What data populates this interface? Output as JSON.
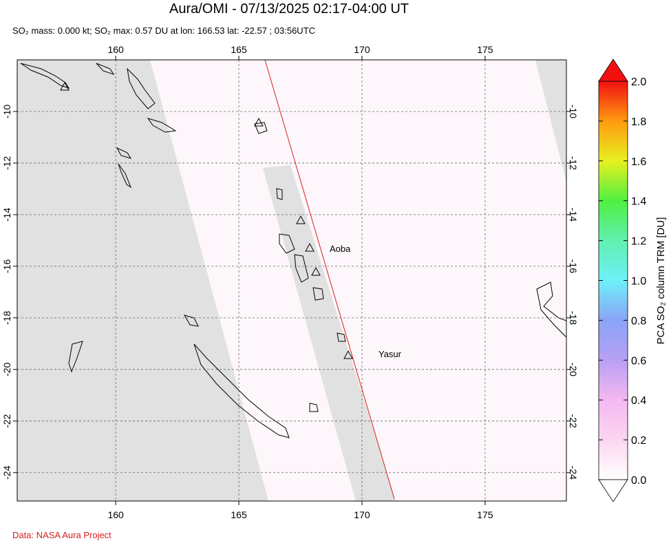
{
  "map": {
    "title": "Aura/OMI - 07/13/2025 02:17-04:00 UT",
    "subtitle": "SO₂ mass: 0.000 kt; SO₂ max: 0.57 DU at lon: 166.53 lat: -22.57 ; 03:56UTC",
    "xlim": [
      156.0,
      178.3
    ],
    "ylim": [
      -25.1,
      -8.0
    ],
    "xticks": [
      160,
      165,
      170,
      175
    ],
    "yticks": [
      -10,
      -12,
      -14,
      -16,
      -18,
      -20,
      -22,
      -24
    ],
    "annotations": [
      {
        "text": "Aoba"
      },
      {
        "text": "Yasur"
      }
    ],
    "colorbar": {
      "label": "PCA SO₂ column TRM [DU]",
      "lim": [
        0,
        2
      ],
      "ticks": [
        {
          "value": 0,
          "label": "0.0"
        },
        {
          "value": 0.2,
          "label": "0.2"
        },
        {
          "value": 0.4,
          "label": "0.4"
        },
        {
          "value": 0.6,
          "label": "0.6"
        },
        {
          "value": 0.8,
          "label": "0.8"
        },
        {
          "value": 1.0,
          "label": "1.0"
        },
        {
          "value": 1.2,
          "label": "1.2"
        },
        {
          "value": 1.4,
          "label": "1.4"
        },
        {
          "value": 1.6,
          "label": "1.6"
        },
        {
          "value": 1.8,
          "label": "1.8"
        },
        {
          "value": 2.0,
          "label": "2.0"
        }
      ]
    },
    "credit": "Data: NASA Aura Project"
  }
}
